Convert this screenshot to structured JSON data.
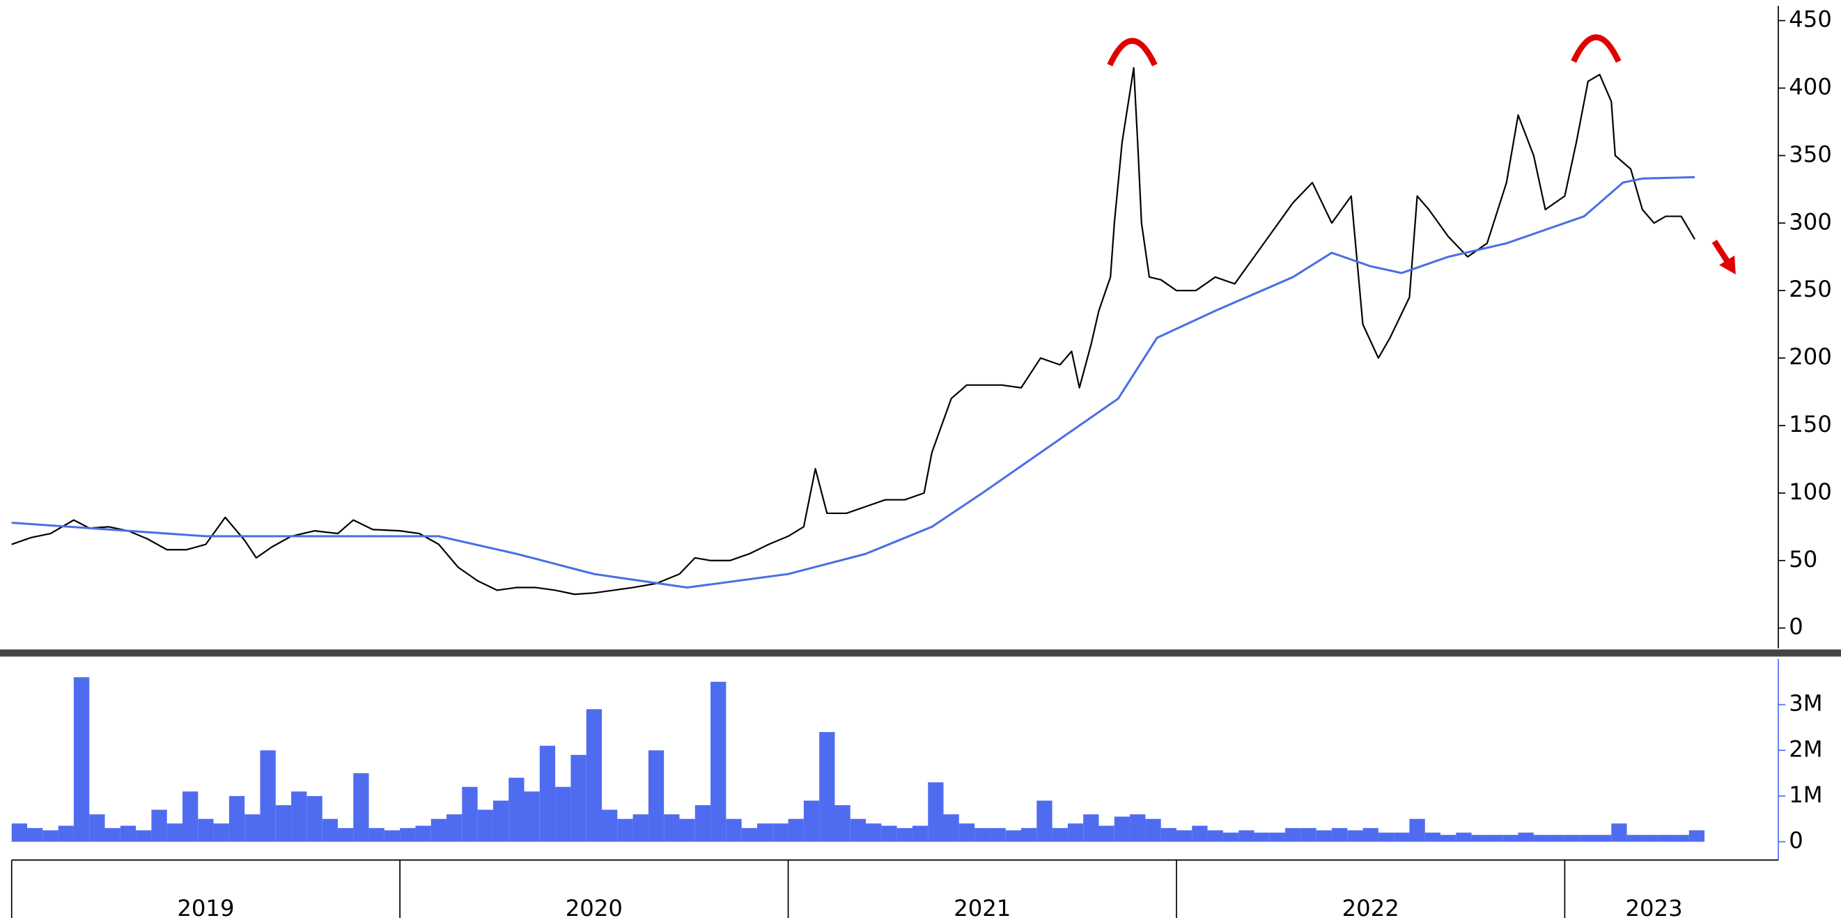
{
  "chart_data": [
    {
      "type": "line",
      "xlim": [
        2018.97,
        2023.55
      ],
      "ylim": [
        -15,
        460
      ],
      "yticks": [
        0,
        50,
        100,
        150,
        200,
        250,
        300,
        350,
        400,
        450
      ],
      "series": [
        {
          "color": "#000000",
          "x": [
            2019.0,
            2019.05,
            2019.1,
            2019.16,
            2019.2,
            2019.25,
            2019.3,
            2019.35,
            2019.4,
            2019.45,
            2019.5,
            2019.55,
            2019.6,
            2019.63,
            2019.67,
            2019.72,
            2019.78,
            2019.84,
            2019.88,
            2019.93,
            2020.0,
            2020.05,
            2020.1,
            2020.15,
            2020.2,
            2020.25,
            2020.3,
            2020.35,
            2020.4,
            2020.45,
            2020.5,
            2020.55,
            2020.6,
            2020.66,
            2020.72,
            2020.76,
            2020.8,
            2020.85,
            2020.9,
            2020.95,
            2021.0,
            2021.04,
            2021.07,
            2021.1,
            2021.15,
            2021.2,
            2021.25,
            2021.3,
            2021.35,
            2021.37,
            2021.42,
            2021.46,
            2021.5,
            2021.55,
            2021.6,
            2021.65,
            2021.7,
            2021.73,
            2021.75,
            2021.78,
            2021.8,
            2021.83,
            2021.84,
            2021.86,
            2021.89,
            2021.9,
            2021.91,
            2021.93,
            2021.96,
            2022.0,
            2022.05,
            2022.1,
            2022.15,
            2022.2,
            2022.25,
            2022.3,
            2022.35,
            2022.4,
            2022.45,
            2022.48,
            2022.52,
            2022.55,
            2022.6,
            2022.62,
            2022.65,
            2022.7,
            2022.75,
            2022.8,
            2022.85,
            2022.88,
            2022.92,
            2022.95,
            2023.0,
            2023.03,
            2023.06,
            2023.09,
            2023.12,
            2023.13,
            2023.17,
            2023.2,
            2023.23,
            2023.26,
            2023.3,
            2023.335
          ],
          "values": [
            62,
            67,
            70,
            80,
            74,
            75,
            72,
            66,
            58,
            58,
            62,
            82,
            65,
            52,
            60,
            68,
            72,
            70,
            80,
            73,
            72,
            70,
            62,
            45,
            35,
            28,
            30,
            30,
            28,
            25,
            26,
            28,
            30,
            33,
            40,
            52,
            50,
            50,
            55,
            62,
            68,
            75,
            118,
            85,
            85,
            90,
            95,
            95,
            100,
            130,
            170,
            180,
            180,
            180,
            178,
            200,
            195,
            205,
            178,
            210,
            235,
            260,
            300,
            360,
            415,
            360,
            300,
            260,
            258,
            250,
            250,
            260,
            255,
            275,
            295,
            315,
            330,
            300,
            320,
            225,
            200,
            215,
            245,
            320,
            310,
            290,
            275,
            285,
            330,
            380,
            350,
            310,
            320,
            360,
            405,
            410,
            390,
            350,
            340,
            310,
            300,
            305,
            305,
            288
          ]
        },
        {
          "color": "#4a6fe3",
          "x": [
            2019.0,
            2019.5,
            2020.1,
            2020.3,
            2020.5,
            2020.74,
            2021.0,
            2021.2,
            2021.37,
            2021.5,
            2021.7,
            2021.85,
            2021.95,
            2022.1,
            2022.3,
            2022.4,
            2022.5,
            2022.58,
            2022.7,
            2022.85,
            2022.95,
            2023.05,
            2023.15,
            2023.2,
            2023.335
          ],
          "values": [
            78,
            68,
            68,
            55,
            40,
            30,
            40,
            55,
            75,
            100,
            140,
            170,
            215,
            235,
            260,
            278,
            268,
            263,
            275,
            285,
            295,
            305,
            330,
            333,
            334
          ]
        }
      ]
    },
    {
      "type": "bar",
      "xlim": [
        2018.97,
        2023.55
      ],
      "xticks": [
        2019,
        2020,
        2021,
        2022,
        2023
      ],
      "x_labels": [
        {
          "value": 2019.5,
          "label": "2019"
        },
        {
          "value": 2020.5,
          "label": "2020"
        },
        {
          "value": 2021.5,
          "label": "2021"
        },
        {
          "value": 2022.5,
          "label": "2022"
        },
        {
          "value": 2023.23,
          "label": "2023"
        }
      ],
      "ylim": [
        -400000,
        4000000
      ],
      "yticks": [
        0,
        {
          "value": 1000000,
          "label": "1M"
        },
        {
          "value": 2000000,
          "label": "2M"
        },
        {
          "value": 3000000,
          "label": "3M"
        }
      ],
      "color": "#4f6cf0",
      "bar_width": 0.04,
      "x": [
        2019.0,
        2019.04,
        2019.08,
        2019.12,
        2019.16,
        2019.2,
        2019.24,
        2019.28,
        2019.32,
        2019.36,
        2019.4,
        2019.44,
        2019.48,
        2019.52,
        2019.56,
        2019.6,
        2019.64,
        2019.68,
        2019.72,
        2019.76,
        2019.8,
        2019.84,
        2019.88,
        2019.92,
        2019.96,
        2020.0,
        2020.04,
        2020.08,
        2020.12,
        2020.16,
        2020.2,
        2020.24,
        2020.28,
        2020.32,
        2020.36,
        2020.4,
        2020.44,
        2020.48,
        2020.52,
        2020.56,
        2020.6,
        2020.64,
        2020.68,
        2020.72,
        2020.76,
        2020.8,
        2020.84,
        2020.88,
        2020.92,
        2020.96,
        2021.0,
        2021.04,
        2021.08,
        2021.12,
        2021.16,
        2021.2,
        2021.24,
        2021.28,
        2021.32,
        2021.36,
        2021.4,
        2021.44,
        2021.48,
        2021.52,
        2021.56,
        2021.6,
        2021.64,
        2021.68,
        2021.72,
        2021.76,
        2021.8,
        2021.84,
        2021.88,
        2021.92,
        2021.96,
        2022.0,
        2022.04,
        2022.08,
        2022.12,
        2022.16,
        2022.2,
        2022.24,
        2022.28,
        2022.32,
        2022.36,
        2022.4,
        2022.44,
        2022.48,
        2022.52,
        2022.56,
        2022.6,
        2022.64,
        2022.68,
        2022.72,
        2022.76,
        2022.8,
        2022.84,
        2022.88,
        2022.92,
        2022.96,
        2023.0,
        2023.04,
        2023.08,
        2023.12,
        2023.16,
        2023.2,
        2023.24,
        2023.28,
        2023.32
      ],
      "values": [
        400000,
        300000,
        250000,
        350000,
        3600000,
        600000,
        300000,
        350000,
        250000,
        700000,
        400000,
        1100000,
        500000,
        400000,
        1000000,
        600000,
        2000000,
        800000,
        1100000,
        1000000,
        500000,
        300000,
        1500000,
        300000,
        250000,
        300000,
        350000,
        500000,
        600000,
        1200000,
        700000,
        900000,
        1400000,
        1100000,
        2100000,
        1200000,
        1900000,
        2900000,
        700000,
        500000,
        600000,
        2000000,
        600000,
        500000,
        800000,
        3500000,
        500000,
        300000,
        400000,
        400000,
        500000,
        900000,
        2400000,
        800000,
        500000,
        400000,
        350000,
        300000,
        350000,
        1300000,
        600000,
        400000,
        300000,
        300000,
        250000,
        300000,
        900000,
        300000,
        400000,
        600000,
        350000,
        550000,
        600000,
        500000,
        300000,
        250000,
        350000,
        250000,
        200000,
        250000,
        200000,
        200000,
        300000,
        300000,
        250000,
        300000,
        250000,
        300000,
        200000,
        200000,
        500000,
        200000,
        150000,
        200000,
        150000,
        150000,
        150000,
        200000,
        150000,
        150000,
        150000,
        150000,
        150000,
        400000,
        150000,
        150000,
        150000,
        150000,
        250000
      ]
    }
  ]
}
